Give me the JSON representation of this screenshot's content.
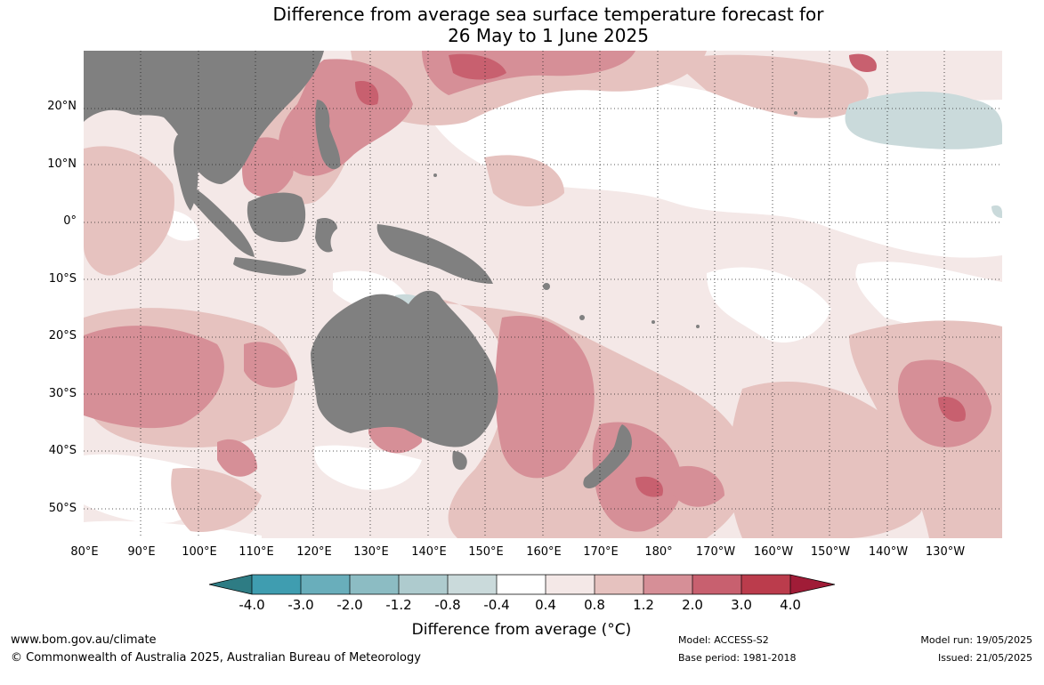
{
  "title": {
    "line1": "Difference from average sea surface temperature forecast for",
    "line2": "26 May to 1 June 2025"
  },
  "axes": {
    "lat_labels": [
      "20°N",
      "10°N",
      "0°",
      "10°S",
      "20°S",
      "30°S",
      "40°S",
      "50°S"
    ],
    "lon_labels": [
      "80°E",
      "90°E",
      "100°E",
      "110°E",
      "120°E",
      "130°E",
      "140°E",
      "150°E",
      "160°E",
      "170°E",
      "180°",
      "170°W",
      "160°W",
      "150°W",
      "140°W",
      "130°W"
    ]
  },
  "colorbar": {
    "title": "Difference from average (°C)",
    "ticks": [
      "-4.0",
      "-3.0",
      "-2.0",
      "-1.2",
      "-0.8",
      "-0.4",
      "0.4",
      "0.8",
      "1.2",
      "2.0",
      "3.0",
      "4.0"
    ],
    "colors": [
      "#2e7c84",
      "#3f9db0",
      "#69aebb",
      "#8cbcc3",
      "#aecbce",
      "#cadadb",
      "#ffffff",
      "#f4e8e7",
      "#e6c2bf",
      "#d68f97",
      "#c8606f",
      "#bb3c4c",
      "#a01c37"
    ]
  },
  "colors": {
    "land": "#808080",
    "ocean_neutral": "#ffffff"
  },
  "footer": {
    "website": "www.bom.gov.au/climate",
    "copyright": "© Commonwealth of Australia 2025, Australian Bureau of Meteorology",
    "model": "Model: ACCESS-S2",
    "base_period": "Base period: 1981-2018",
    "model_run": "Model run: 19/05/2025",
    "issued": "Issued: 21/05/2025"
  }
}
